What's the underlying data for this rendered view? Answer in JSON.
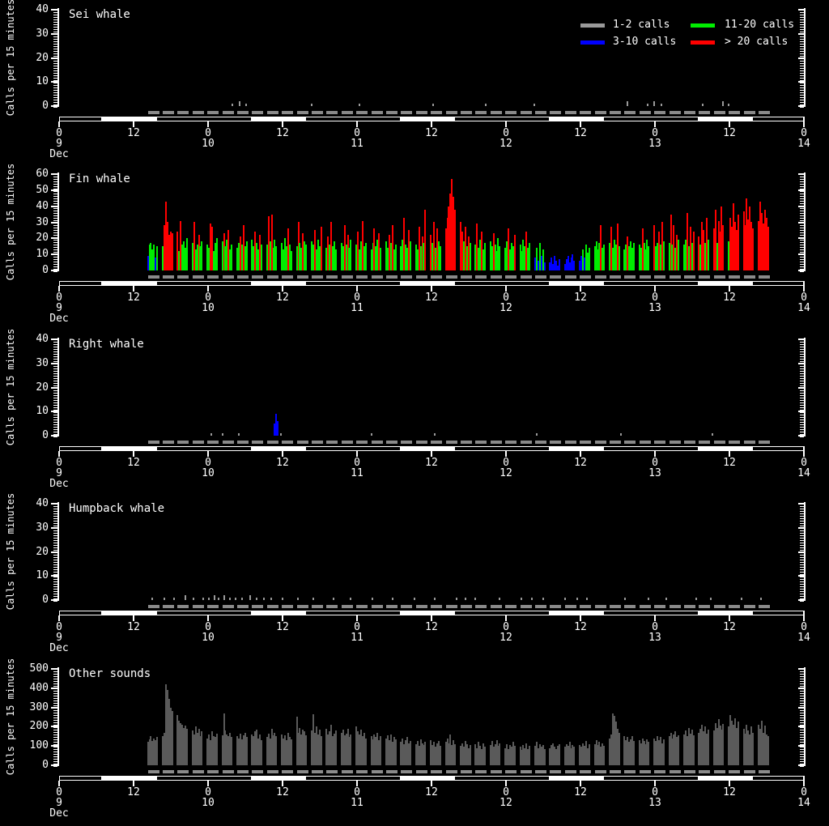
{
  "colors": {
    "background": "#000000",
    "foreground": "#ffffff",
    "gray_1_2": "#999999",
    "blue_3_10": "#0000ff",
    "green_11_20": "#00ee00",
    "red_gt_20": "#ff0000",
    "duty_dash": "#8a8a8a",
    "other_bars": "#5a5a5a",
    "effort_day": "#ffffff",
    "effort_night": "#000000"
  },
  "y_axis_title": "Calls per 15 minutes",
  "legend": {
    "position": "top-right-first-panel",
    "items": [
      {
        "label": "1-2 calls",
        "color_key": "gray_1_2"
      },
      {
        "label": "3-10 calls",
        "color_key": "blue_3_10"
      },
      {
        "label": "11-20 calls",
        "color_key": "green_11_20"
      },
      {
        "label": "> 20 calls",
        "color_key": "red_gt_20"
      }
    ]
  },
  "x_axis": {
    "hours_range": [
      0,
      120
    ],
    "tick_every_hours": 12,
    "tick_labels": [
      "0",
      "12",
      "0",
      "12",
      "0",
      "12",
      "0",
      "12",
      "0",
      "12",
      "0"
    ],
    "day_labels": [
      "9",
      "10",
      "11",
      "12",
      "13",
      "14"
    ],
    "month_label": "Dec"
  },
  "effort": {
    "duty_start_hour": 14.3,
    "duty_period_hours": 2.4,
    "duty_on_hours": 1.87,
    "duty_groups": 42,
    "night_hours": [
      [
        0,
        6.95
      ],
      [
        15.7,
        31.05
      ],
      [
        39.7,
        55.05
      ],
      [
        63.7,
        79.05
      ],
      [
        87.7,
        103.05
      ],
      [
        111.7,
        120
      ]
    ]
  },
  "chart_data": [
    {
      "type": "bar",
      "title": "Sei whale",
      "ylabel": "Calls per 15 minutes",
      "ylim": [
        0,
        40
      ],
      "ytick_interval": 10,
      "bin_minutes": 15,
      "color_mode": "by_value",
      "points": [
        [
          27.9,
          1
        ],
        [
          29.15,
          2
        ],
        [
          30.1,
          1
        ],
        [
          40.7,
          1
        ],
        [
          48.35,
          1
        ],
        [
          60.3,
          1
        ],
        [
          68.7,
          1
        ],
        [
          76.5,
          1
        ],
        [
          91.5,
          2
        ],
        [
          94.8,
          1
        ],
        [
          95.9,
          2
        ],
        [
          97.05,
          1
        ],
        [
          103.7,
          1
        ],
        [
          106.9,
          2
        ],
        [
          107.9,
          1
        ]
      ]
    },
    {
      "type": "bar",
      "title": "Fin whale",
      "ylabel": "Calls per 15 minutes",
      "ylim": [
        0,
        60
      ],
      "ytick_interval": 10,
      "bin_minutes": 15,
      "color_mode": "by_value",
      "groups_start_hour": 14.3,
      "groups_period_hours": 2.4,
      "bin_hours": 0.25,
      "groups": [
        [
          9,
          16,
          17,
          13,
          16,
          8,
          15
        ],
        [
          15,
          28,
          43,
          30,
          22,
          24,
          23
        ],
        [
          24,
          12,
          31,
          16,
          18,
          14,
          20
        ],
        [
          17,
          30,
          13,
          16,
          22,
          15,
          18
        ],
        [
          16,
          14,
          29,
          27,
          12,
          17,
          20
        ],
        [
          18,
          23,
          15,
          19,
          25,
          13,
          16
        ],
        [
          14,
          17,
          21,
          16,
          28,
          15,
          18
        ],
        [
          19,
          15,
          24,
          17,
          13,
          22,
          16
        ],
        [
          16,
          34,
          18,
          35,
          14,
          19,
          15
        ],
        [
          17,
          13,
          20,
          15,
          26,
          16,
          12
        ],
        [
          15,
          30,
          17,
          14,
          23,
          18,
          16
        ],
        [
          18,
          16,
          25,
          13,
          19,
          15,
          27
        ],
        [
          14,
          21,
          16,
          30,
          15,
          18,
          13
        ],
        [
          17,
          15,
          28,
          16,
          22,
          14,
          19
        ],
        [
          16,
          24,
          13,
          18,
          31,
          15,
          17
        ],
        [
          13,
          17,
          26,
          15,
          19,
          23,
          14
        ],
        [
          18,
          14,
          22,
          17,
          28,
          13,
          16
        ],
        [
          15,
          19,
          33,
          16,
          14,
          25,
          18
        ],
        [
          16,
          13,
          27,
          15,
          21,
          17,
          38
        ],
        [
          22,
          17,
          30,
          14,
          26,
          18,
          15
        ],
        [
          26,
          33,
          40,
          48,
          57,
          46,
          38
        ],
        [
          30,
          24,
          18,
          27,
          15,
          21,
          17
        ],
        [
          16,
          29,
          14,
          19,
          24,
          13,
          17
        ],
        [
          18,
          15,
          23,
          16,
          12,
          20,
          15
        ],
        [
          14,
          18,
          26,
          13,
          17,
          15,
          22
        ],
        [
          16,
          12,
          19,
          15,
          24,
          14,
          17
        ],
        [
          8,
          14,
          6,
          17,
          9,
          13,
          5
        ],
        [
          5,
          8,
          4,
          9,
          6,
          3,
          7
        ],
        [
          4,
          7,
          9,
          5,
          8,
          10,
          6
        ],
        [
          6,
          9,
          13,
          8,
          16,
          11,
          14
        ],
        [
          15,
          18,
          13,
          17,
          28,
          14,
          16
        ],
        [
          17,
          27,
          14,
          19,
          16,
          29,
          15
        ],
        [
          13,
          16,
          21,
          15,
          18,
          14,
          17
        ],
        [
          16,
          14,
          26,
          17,
          13,
          19,
          15
        ],
        [
          28,
          15,
          17,
          24,
          16,
          30,
          18
        ],
        [
          17,
          35,
          16,
          28,
          14,
          22,
          19
        ],
        [
          16,
          19,
          36,
          15,
          27,
          17,
          24
        ],
        [
          21,
          16,
          30,
          25,
          17,
          33,
          19
        ],
        [
          26,
          38,
          17,
          31,
          24,
          40,
          28
        ],
        [
          18,
          33,
          27,
          42,
          30,
          25,
          35
        ],
        [
          37,
          28,
          45,
          32,
          40,
          30,
          26
        ],
        [
          31,
          43,
          36,
          29,
          38,
          33,
          27
        ]
      ]
    },
    {
      "type": "bar",
      "title": "Right whale",
      "ylabel": "Calls per 15 minutes",
      "ylim": [
        0,
        40
      ],
      "ytick_interval": 10,
      "bin_minutes": 15,
      "color_mode": "by_value",
      "points": [
        [
          24.55,
          1
        ],
        [
          26.3,
          1
        ],
        [
          28.95,
          1
        ],
        [
          34.75,
          5
        ],
        [
          35.0,
          9
        ],
        [
          35.25,
          6
        ],
        [
          35.75,
          1
        ],
        [
          50.3,
          1
        ],
        [
          60.55,
          1
        ],
        [
          76.95,
          1
        ],
        [
          90.55,
          1
        ],
        [
          105.3,
          1
        ]
      ]
    },
    {
      "type": "bar",
      "title": "Humpback whale",
      "ylabel": "Calls per 15 minutes",
      "ylim": [
        0,
        40
      ],
      "ytick_interval": 10,
      "bin_minutes": 15,
      "color_mode": "by_value",
      "points": [
        [
          15.05,
          1
        ],
        [
          16.9,
          1
        ],
        [
          18.55,
          1
        ],
        [
          20.3,
          2
        ],
        [
          21.65,
          1
        ],
        [
          23.2,
          1
        ],
        [
          24.1,
          1
        ],
        [
          25.0,
          2
        ],
        [
          25.75,
          1
        ],
        [
          26.6,
          2
        ],
        [
          27.5,
          1
        ],
        [
          28.4,
          1
        ],
        [
          29.5,
          1
        ],
        [
          30.8,
          2
        ],
        [
          31.8,
          1
        ],
        [
          33.0,
          1
        ],
        [
          34.2,
          1
        ],
        [
          36.0,
          1
        ],
        [
          38.5,
          1
        ],
        [
          41.0,
          1
        ],
        [
          44.2,
          1
        ],
        [
          47.0,
          1
        ],
        [
          50.5,
          1
        ],
        [
          53.8,
          1
        ],
        [
          57.2,
          1
        ],
        [
          60.5,
          1
        ],
        [
          64.0,
          1
        ],
        [
          65.5,
          1
        ],
        [
          67.0,
          1
        ],
        [
          71.0,
          1
        ],
        [
          74.5,
          1
        ],
        [
          76.2,
          1
        ],
        [
          78.0,
          1
        ],
        [
          81.5,
          1
        ],
        [
          83.5,
          1
        ],
        [
          85.0,
          1
        ],
        [
          91.2,
          1
        ],
        [
          95.0,
          1
        ],
        [
          97.8,
          1
        ],
        [
          102.7,
          1
        ],
        [
          105.0,
          1
        ],
        [
          110.0,
          1
        ],
        [
          113.1,
          1
        ]
      ]
    },
    {
      "type": "bar",
      "title": "Other sounds",
      "ylabel": "Calls per 15 minutes",
      "ylim": [
        0,
        500
      ],
      "ytick_interval": 100,
      "bin_minutes": 15,
      "color_mode": "fixed",
      "fixed_color_key": "other_bars",
      "groups_start_hour": 14.3,
      "groups_period_hours": 2.4,
      "bin_hours": 0.25,
      "groups": [
        [
          120,
          135,
          150,
          125,
          140,
          130,
          145
        ],
        [
          150,
          170,
          420,
          390,
          345,
          300,
          280
        ],
        [
          260,
          230,
          220,
          210,
          195,
          205,
          190
        ],
        [
          180,
          160,
          200,
          170,
          190,
          150,
          175
        ],
        [
          140,
          160,
          130,
          175,
          150,
          145,
          165
        ],
        [
          155,
          270,
          180,
          160,
          150,
          170,
          145
        ],
        [
          150,
          140,
          165,
          135,
          155,
          170,
          145
        ],
        [
          160,
          150,
          175,
          185,
          140,
          160,
          130
        ],
        [
          145,
          165,
          140,
          190,
          155,
          170,
          150
        ],
        [
          160,
          140,
          155,
          130,
          170,
          145,
          135
        ],
        [
          250,
          170,
          195,
          160,
          185,
          175,
          155
        ],
        [
          180,
          265,
          170,
          200,
          160,
          185,
          150
        ],
        [
          190,
          160,
          175,
          210,
          150,
          165,
          180
        ],
        [
          170,
          185,
          155,
          165,
          190,
          145,
          160
        ],
        [
          200,
          175,
          160,
          185,
          150,
          170,
          140
        ],
        [
          150,
          135,
          160,
          145,
          170,
          130,
          150
        ],
        [
          140,
          155,
          130,
          160,
          120,
          145,
          135
        ],
        [
          120,
          140,
          110,
          130,
          145,
          115,
          125
        ],
        [
          110,
          125,
          100,
          135,
          115,
          105,
          120
        ],
        [
          130,
          105,
          120,
          95,
          115,
          125,
          100
        ],
        [
          120,
          140,
          115,
          160,
          105,
          130,
          110
        ],
        [
          100,
          115,
          95,
          125,
          110,
          90,
          105
        ],
        [
          110,
          90,
          120,
          100,
          85,
          115,
          95
        ],
        [
          105,
          125,
          95,
          110,
          130,
          100,
          115
        ],
        [
          90,
          110,
          85,
          105,
          95,
          120,
          100
        ],
        [
          95,
          80,
          105,
          90,
          115,
          85,
          100
        ],
        [
          100,
          120,
          90,
          110,
          95,
          105,
          85
        ],
        [
          90,
          105,
          115,
          95,
          85,
          100,
          110
        ],
        [
          95,
          110,
          100,
          120,
          90,
          105,
          95
        ],
        [
          105,
          95,
          115,
          100,
          125,
          90,
          110
        ],
        [
          110,
          130,
          105,
          120,
          95,
          115,
          100
        ],
        [
          140,
          160,
          270,
          255,
          225,
          190,
          170
        ],
        [
          150,
          130,
          145,
          120,
          135,
          150,
          125
        ],
        [
          130,
          115,
          140,
          125,
          110,
          135,
          120
        ],
        [
          140,
          125,
          150,
          130,
          145,
          115,
          135
        ],
        [
          150,
          170,
          140,
          160,
          175,
          145,
          155
        ],
        [
          160,
          180,
          150,
          195,
          165,
          185,
          155
        ],
        [
          170,
          190,
          210,
          175,
          200,
          165,
          185
        ],
        [
          180,
          220,
          195,
          240,
          205,
          185,
          215
        ],
        [
          200,
          260,
          230,
          210,
          245,
          195,
          225
        ],
        [
          190,
          165,
          210,
          180,
          160,
          200,
          170
        ],
        [
          210,
          190,
          230,
          170,
          205,
          160,
          150
        ]
      ]
    }
  ]
}
